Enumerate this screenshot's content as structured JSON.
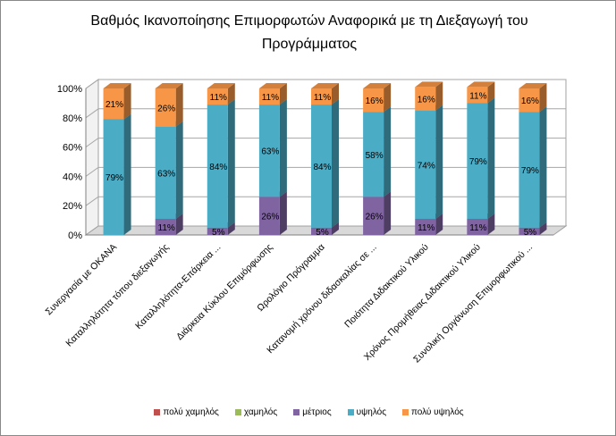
{
  "chart_data": {
    "type": "bar",
    "stacked": true,
    "percent": true,
    "title": "Βαθμός Ικανοποίησης Επιμορφωτών Αναφορικά με τη Διεξαγωγή του Προγράμματος",
    "categories": [
      "Συνεργασία με ΟΚΑΝΑ",
      "Καταλληλότητα τόπου διεξαγωγής",
      "Καταλληλότητα-Επάρκεια ...",
      "Διάρκεια Κύκλου Επιμόρφωσης",
      "Ωρολόγιο Πρόγραμμα",
      "Κατανομή χρόνου διδασκαλίας σε ...",
      "Ποιότητα Διδακτικού Υλικού",
      "Χρόνος Προμήθειας Διδακτικού Υλικού",
      "Συνολική Οργάνωση Επιμορφωτικού ..."
    ],
    "series": [
      {
        "name": "πολύ χαμηλός",
        "color": "#c0504d",
        "values": [
          0,
          0,
          0,
          0,
          0,
          0,
          0,
          0,
          0
        ]
      },
      {
        "name": "χαμηλός",
        "color": "#9bbb59",
        "values": [
          0,
          0,
          0,
          0,
          0,
          0,
          0,
          0,
          0
        ]
      },
      {
        "name": "μέτριος",
        "color": "#8064a2",
        "values": [
          0,
          11,
          5,
          26,
          5,
          26,
          11,
          11,
          5
        ]
      },
      {
        "name": "υψηλός",
        "color": "#4bacc6",
        "values": [
          79,
          63,
          84,
          63,
          84,
          58,
          74,
          79,
          79
        ]
      },
      {
        "name": "πολύ υψηλός",
        "color": "#f79646",
        "values": [
          21,
          26,
          11,
          11,
          11,
          16,
          16,
          11,
          16
        ]
      }
    ],
    "data_labels": [
      {
        "μέτριος": "",
        "υψηλός": "79%",
        "πολύ υψηλός": "21%"
      },
      {
        "μέτριος": "11%",
        "υψηλός": "63%",
        "πολύ υψηλός": "26%"
      },
      {
        "μέτριος": "5%",
        "υψηλός": "84%",
        "πολύ υψηλός": "11%"
      },
      {
        "μέτριος": "26%",
        "υψηλός": "63%",
        "πολύ υψηλός": "11%"
      },
      {
        "μέτριος": "5%",
        "υψηλός": "84%",
        "πολύ υψηλός": "11%"
      },
      {
        "μέτριος": "26%",
        "υψηλός": "58%",
        "πολύ υψηλός": "16%"
      },
      {
        "μέτριος": "11%",
        "υψηλός": "74%",
        "πολύ υψηλός": "16%"
      },
      {
        "μέτριος": "11%",
        "υψηλός": "79%",
        "πολύ υψηλός": "11%"
      },
      {
        "μέτριος": "5%",
        "υψηλός": "79%",
        "πολύ υψηλός": "16%"
      }
    ],
    "y_ticks": [
      "0%",
      "20%",
      "40%",
      "60%",
      "80%",
      "100%"
    ],
    "ylim": [
      0,
      100
    ],
    "grid": true,
    "legend_position": "bottom"
  }
}
